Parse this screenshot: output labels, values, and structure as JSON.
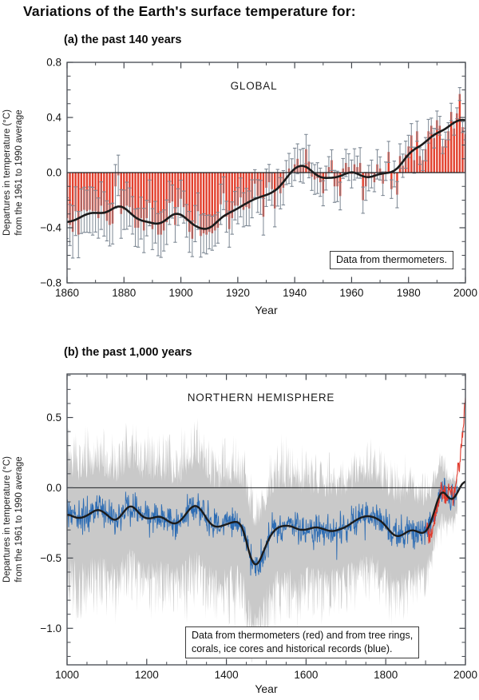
{
  "page": {
    "title": "Variations of the Earth's surface temperature for:"
  },
  "panel_a": {
    "subtitle": "(a) the past 140 years",
    "ylabel_line1": "Departures in temperature (°C)",
    "ylabel_line2": "from the 1961 to 1990 average"
  },
  "panel_b": {
    "subtitle": "(b) the past 1,000 years",
    "ylabel_line1": "Departures in temperature (°C)",
    "ylabel_line2": "from the 1961 to 1990 average",
    "legend_line1": "Data from thermometers (red) and from tree rings,",
    "legend_line2": "corals, ice cores and historical records (blue)."
  },
  "colors": {
    "bar_red": "#e2402e",
    "error_bar": "#7d8894",
    "smooth_black": "#1b1b1b",
    "proxy_blue": "#2e6db4",
    "band_gray": "#c9c9c9",
    "instr_red": "#e0392b",
    "axis": "#42464d",
    "zero_line": "#1f2225"
  },
  "chart_data": [
    {
      "id": "global_past_140_years",
      "type": "bar",
      "title": "GLOBAL",
      "xlabel": "Year",
      "ylabel": "Departures in temperature (°C) from the 1961 to 1990 average",
      "annotation": "Data from thermometers.",
      "xlim": [
        1860,
        2000
      ],
      "ylim": [
        -0.8,
        0.8
      ],
      "x_major_ticks": [
        1860,
        1880,
        1900,
        1920,
        1940,
        1960,
        1980,
        2000
      ],
      "x_tick_labels": [
        "1860",
        "1880",
        "1900",
        "1920",
        "1940",
        "1960",
        "1980",
        "2000"
      ],
      "x_minor_step": 10,
      "y_major_ticks": [
        0.8,
        0.4,
        0.0,
        -0.4,
        -0.8
      ],
      "y_tick_labels": [
        "0.8",
        "0.4",
        "0.0",
        "−0.4",
        "−0.8"
      ],
      "y_minor_step": 0.1,
      "y_minor_range": [
        -0.7,
        0.7
      ],
      "uncertainty_range_start": 0.17,
      "uncertainty_range_end": 0.06,
      "smoothing": "approximately decadal (gaussian) smoothing of annual bars, black line",
      "x_start": 1860,
      "values": [
        -0.33,
        -0.38,
        -0.43,
        -0.28,
        -0.45,
        -0.28,
        -0.27,
        -0.28,
        -0.27,
        -0.28,
        -0.28,
        -0.33,
        -0.24,
        -0.3,
        -0.35,
        -0.38,
        -0.37,
        -0.1,
        -0.02,
        -0.3,
        -0.27,
        -0.24,
        -0.25,
        -0.31,
        -0.4,
        -0.4,
        -0.33,
        -0.42,
        -0.33,
        -0.22,
        -0.41,
        -0.36,
        -0.45,
        -0.45,
        -0.42,
        -0.36,
        -0.22,
        -0.21,
        -0.38,
        -0.25,
        -0.19,
        -0.25,
        -0.35,
        -0.43,
        -0.48,
        -0.37,
        -0.28,
        -0.46,
        -0.44,
        -0.45,
        -0.43,
        -0.44,
        -0.42,
        -0.4,
        -0.23,
        -0.15,
        -0.32,
        -0.41,
        -0.33,
        -0.24,
        -0.24,
        -0.18,
        -0.27,
        -0.25,
        -0.26,
        -0.19,
        -0.08,
        -0.17,
        -0.18,
        -0.32,
        -0.11,
        -0.07,
        -0.12,
        -0.26,
        -0.11,
        -0.15,
        -0.11,
        0.0,
        0.03,
        0.0,
        0.06,
        0.1,
        0.05,
        0.05,
        0.17,
        0.08,
        -0.03,
        -0.05,
        -0.04,
        -0.07,
        -0.15,
        -0.04,
        0.04,
        0.09,
        -0.1,
        -0.1,
        -0.17,
        0.03,
        0.07,
        0.04,
        -0.01,
        0.06,
        0.04,
        0.07,
        -0.2,
        -0.1,
        -0.04,
        -0.01,
        -0.07,
        0.06,
        0.03,
        -0.08,
        0.01,
        0.15,
        -0.12,
        -0.01,
        -0.16,
        0.12,
        0.05,
        0.13,
        0.19,
        0.27,
        0.09,
        0.3,
        0.12,
        0.09,
        0.17,
        0.3,
        0.34,
        0.25,
        0.38,
        0.34,
        0.19,
        0.24,
        0.3,
        0.44,
        0.32,
        0.43,
        0.57,
        0.33,
        0.28
      ]
    },
    {
      "id": "northern_hemisphere_past_1000_years",
      "type": "line",
      "title": "NORTHERN HEMISPHERE",
      "xlabel": "Year",
      "ylabel": "Departures in temperature (°C) from the 1961 to 1990 average",
      "xlim": [
        1000,
        2000
      ],
      "ylim": [
        -1.26,
        0.81
      ],
      "x_major_ticks": [
        1000,
        1200,
        1400,
        1600,
        1800,
        2000
      ],
      "x_tick_labels": [
        "1000",
        "1200",
        "1400",
        "1600",
        "1800",
        "2000"
      ],
      "x_minor_step": 50,
      "x_medium_step": 100,
      "y_major_ticks": [
        0.5,
        0.0,
        -0.5,
        -1.0
      ],
      "y_tick_labels": [
        "0.5",
        "0.0",
        "−0.5",
        "−1.0"
      ],
      "y_minor_step": 0.1,
      "y_minor_range": [
        -1.2,
        0.8
      ],
      "series": [
        {
          "name": "smoothed reconstruction (black, 50-year average)",
          "x_start": 1000,
          "x_step": 10,
          "values": [
            -0.18,
            -0.2,
            -0.21,
            -0.22,
            -0.21,
            -0.2,
            -0.18,
            -0.16,
            -0.15,
            -0.17,
            -0.19,
            -0.22,
            -0.24,
            -0.22,
            -0.18,
            -0.14,
            -0.12,
            -0.14,
            -0.18,
            -0.21,
            -0.22,
            -0.22,
            -0.21,
            -0.2,
            -0.21,
            -0.23,
            -0.25,
            -0.26,
            -0.25,
            -0.22,
            -0.18,
            -0.14,
            -0.12,
            -0.13,
            -0.17,
            -0.22,
            -0.26,
            -0.28,
            -0.28,
            -0.27,
            -0.26,
            -0.25,
            -0.24,
            -0.24,
            -0.26,
            -0.38,
            -0.5,
            -0.57,
            -0.55,
            -0.48,
            -0.4,
            -0.34,
            -0.3,
            -0.28,
            -0.27,
            -0.27,
            -0.27,
            -0.28,
            -0.3,
            -0.3,
            -0.3,
            -0.29,
            -0.28,
            -0.28,
            -0.29,
            -0.3,
            -0.31,
            -0.31,
            -0.3,
            -0.29,
            -0.28,
            -0.26,
            -0.24,
            -0.22,
            -0.21,
            -0.2,
            -0.2,
            -0.21,
            -0.22,
            -0.24,
            -0.27,
            -0.31,
            -0.34,
            -0.35,
            -0.34,
            -0.32,
            -0.3,
            -0.3,
            -0.31,
            -0.33,
            -0.32,
            -0.28,
            -0.19,
            -0.08,
            0.0,
            -0.04,
            -0.09,
            -0.09,
            -0.04,
            0.03,
            0.07
          ]
        },
        {
          "name": "instrumental thermometer record (red), 1902-2000",
          "x_start": 1900,
          "x_step": 10,
          "values": [
            -0.24,
            -0.36,
            -0.26,
            -0.12,
            0.02,
            -0.06,
            -0.02,
            -0.06,
            0.1,
            0.28,
            0.55
          ],
          "peak_1998_approx": 0.7
        },
        {
          "name": "annual proxy reconstruction (blue), 1000-1980",
          "description": "annual values scatter about the smoothed black line (typical ±0.1 °C, spikes ±0.25 °C); drawn procedurally"
        },
        {
          "name": "95% confidence band (gray), 1000-1980",
          "description": "spiky band roughly +0.4/-0.6 °C about the smoothed line, narrowing after 1850; extremes reach about +0.5 and -1.1 °C"
        }
      ]
    }
  ]
}
